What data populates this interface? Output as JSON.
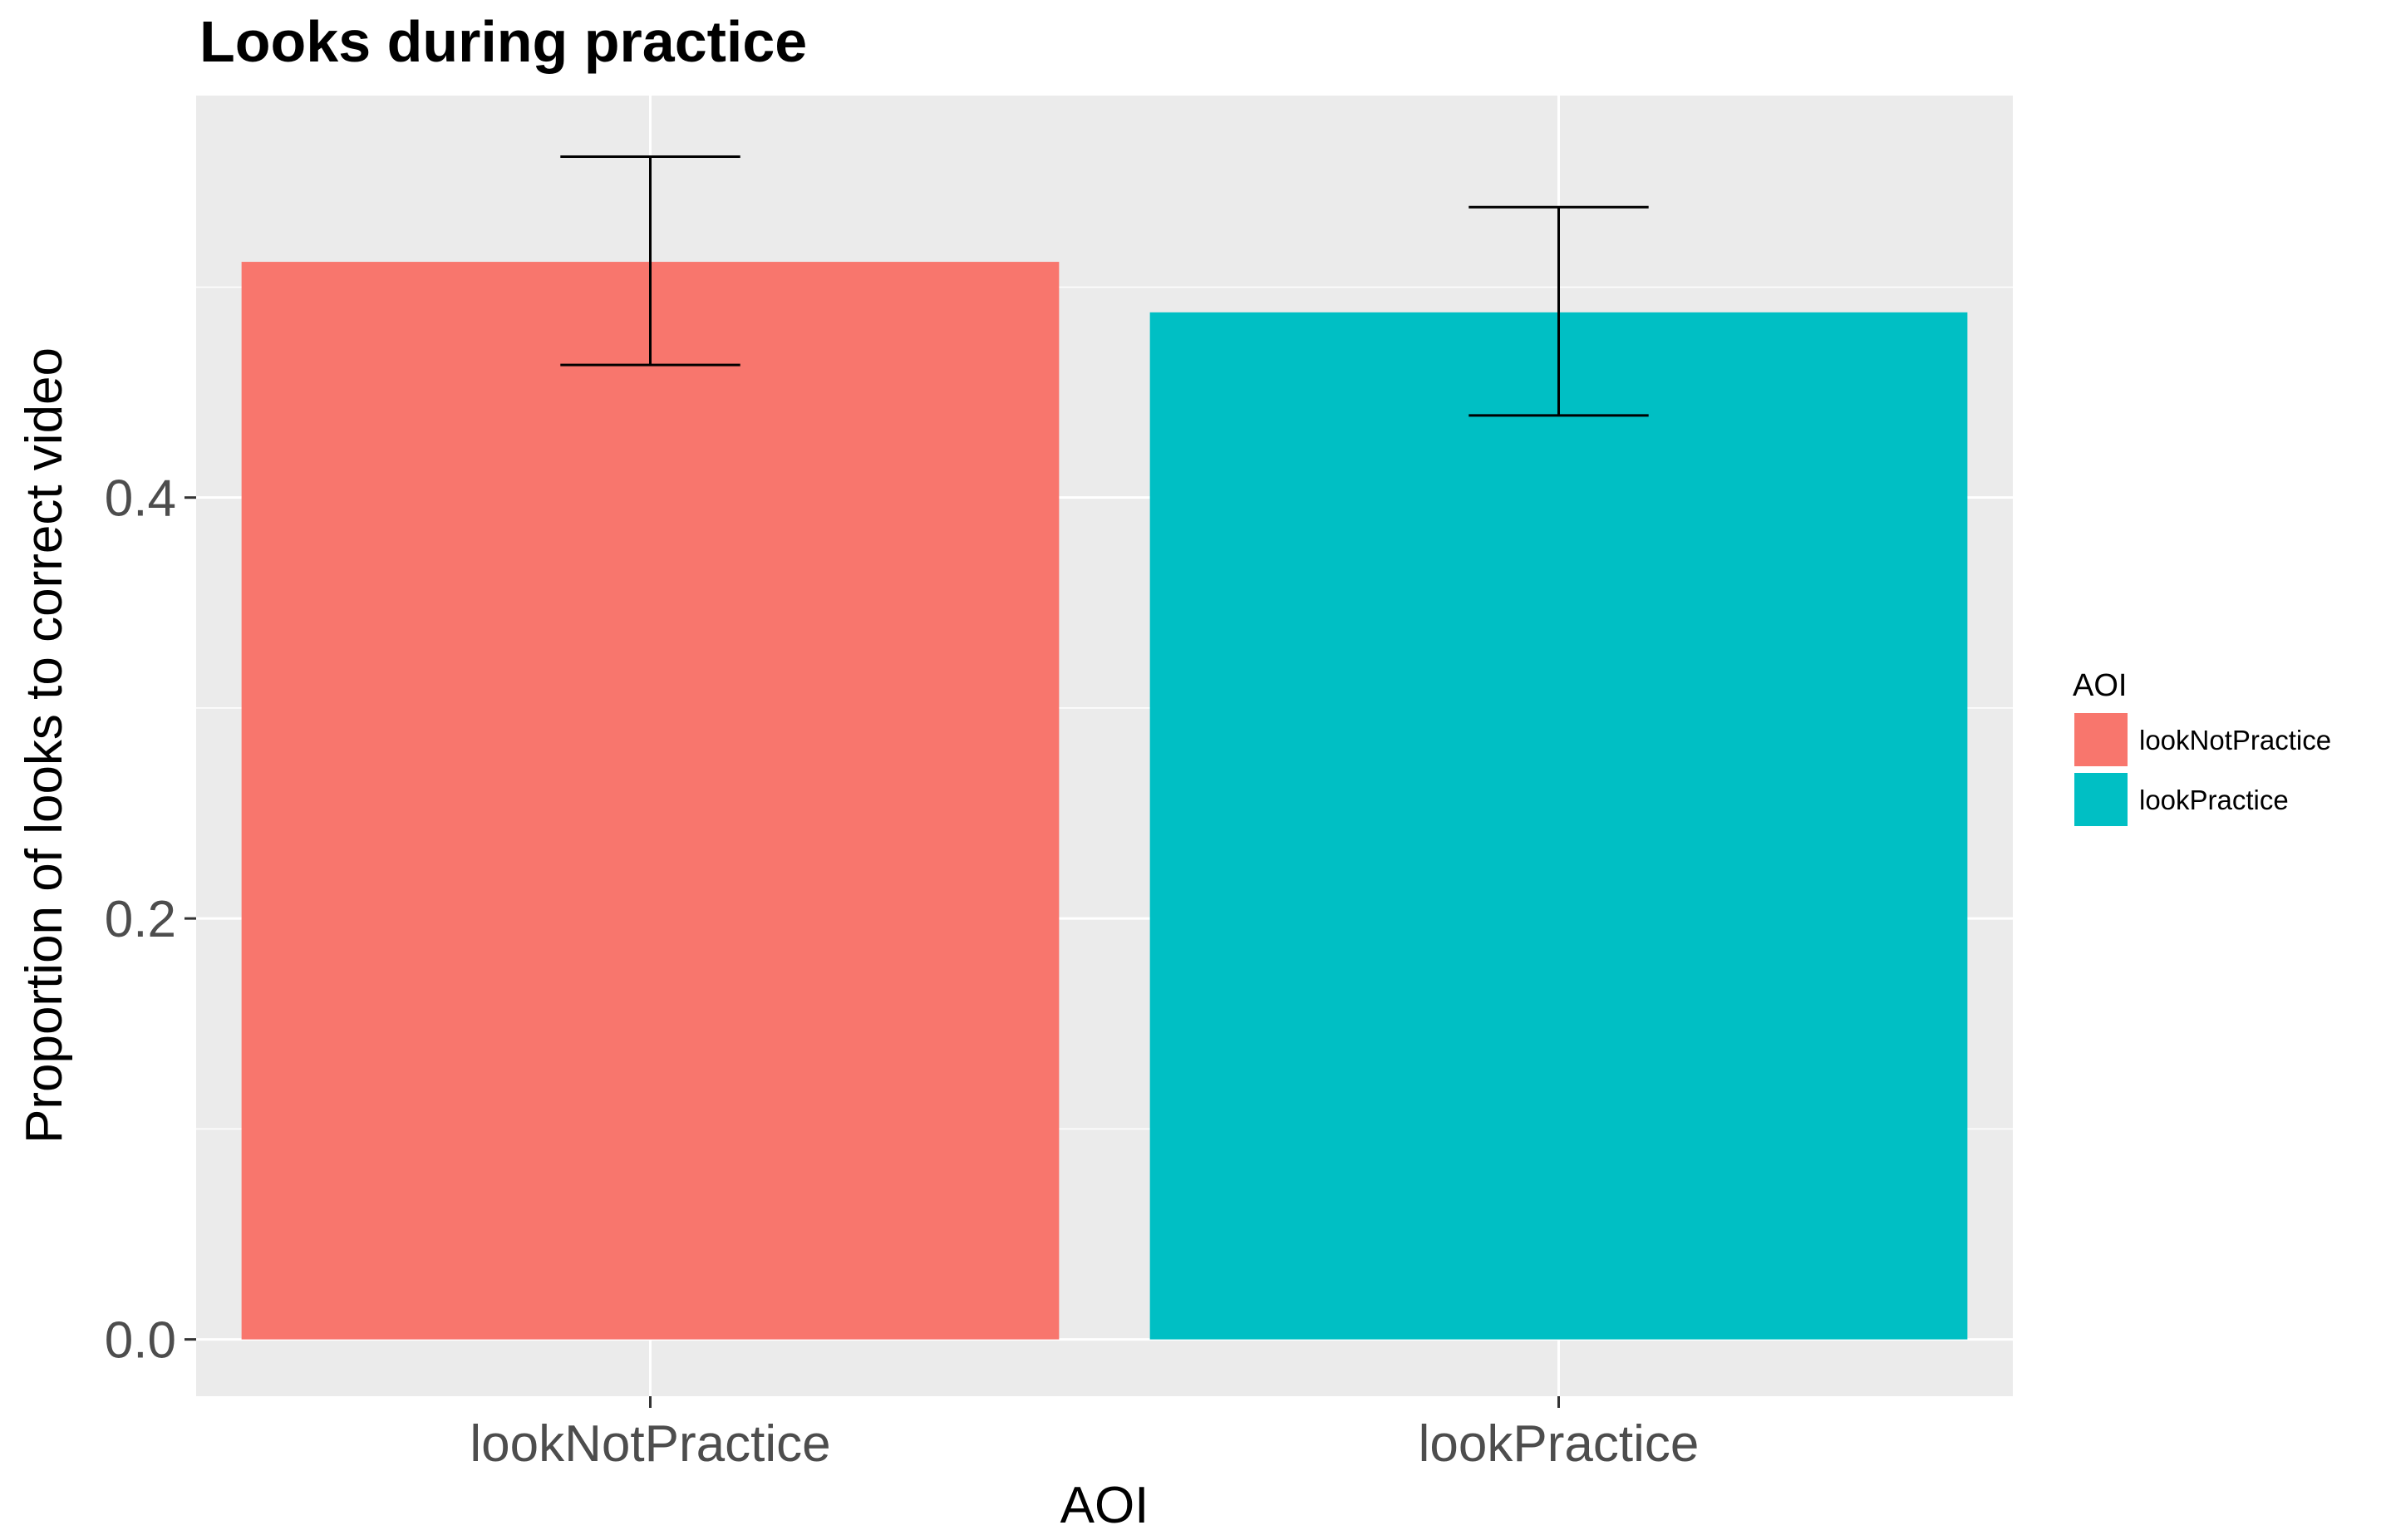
{
  "chart_data": {
    "type": "bar",
    "title": "Looks during practice",
    "xlabel": "AOI",
    "ylabel": "Proportion of looks to correct video",
    "categories": [
      "lookNotPractice",
      "lookPractice"
    ],
    "values": [
      0.512,
      0.488
    ],
    "error_bars": [
      {
        "lower": 0.463,
        "upper": 0.562
      },
      {
        "lower": 0.439,
        "upper": 0.538
      }
    ],
    "colors": [
      "#F8766D",
      "#00BFC4"
    ],
    "ylim": [
      -0.027,
      0.591
    ],
    "y_ticks": [
      0.0,
      0.2,
      0.4
    ],
    "y_tick_labels": [
      "0.0",
      "0.2",
      "0.4"
    ],
    "y_minor_ticks": [
      0.1,
      0.3,
      0.5
    ],
    "grid": true,
    "panel_background": "#EBEBEB",
    "grid_color": "#FFFFFF",
    "legend": {
      "title": "AOI",
      "position": "right",
      "items": [
        "lookNotPractice",
        "lookPractice"
      ]
    }
  }
}
